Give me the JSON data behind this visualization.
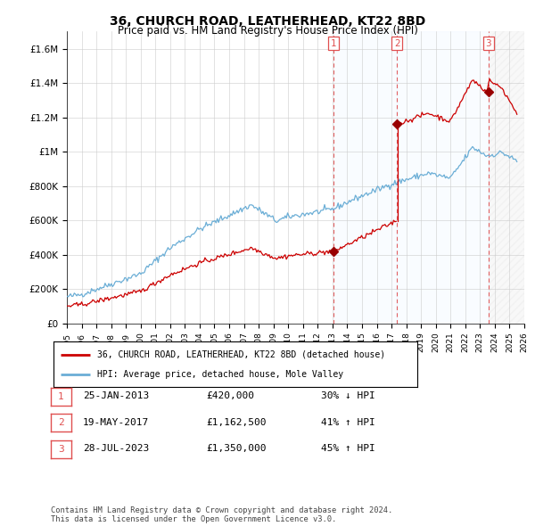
{
  "title": "36, CHURCH ROAD, LEATHERHEAD, KT22 8BD",
  "subtitle": "Price paid vs. HM Land Registry's House Price Index (HPI)",
  "ylim": [
    0,
    1700000
  ],
  "yticks": [
    0,
    200000,
    400000,
    600000,
    800000,
    1000000,
    1200000,
    1400000,
    1600000
  ],
  "ytick_labels": [
    "£0",
    "£200K",
    "£400K",
    "£600K",
    "£800K",
    "£1M",
    "£1.2M",
    "£1.4M",
    "£1.6M"
  ],
  "hpi_color": "#6baed6",
  "price_color": "#cc0000",
  "vline_color": "#e05050",
  "marker_color": "#990000",
  "shade_color": "#ddeeff",
  "transactions": [
    {
      "num": 1,
      "date": "25-JAN-2013",
      "price": 420000,
      "pct": "30%",
      "dir": "↓",
      "x_year": 2013.07
    },
    {
      "num": 2,
      "date": "19-MAY-2017",
      "price": 1162500,
      "pct": "41%",
      "dir": "↑",
      "x_year": 2017.38
    },
    {
      "num": 3,
      "date": "28-JUL-2023",
      "price": 1350000,
      "pct": "45%",
      "dir": "↑",
      "x_year": 2023.57
    }
  ],
  "legend_entries": [
    "36, CHURCH ROAD, LEATHERHEAD, KT22 8BD (detached house)",
    "HPI: Average price, detached house, Mole Valley"
  ],
  "footer": "Contains HM Land Registry data © Crown copyright and database right 2024.\nThis data is licensed under the Open Government Licence v3.0.",
  "xmin": 1995,
  "xmax": 2026
}
